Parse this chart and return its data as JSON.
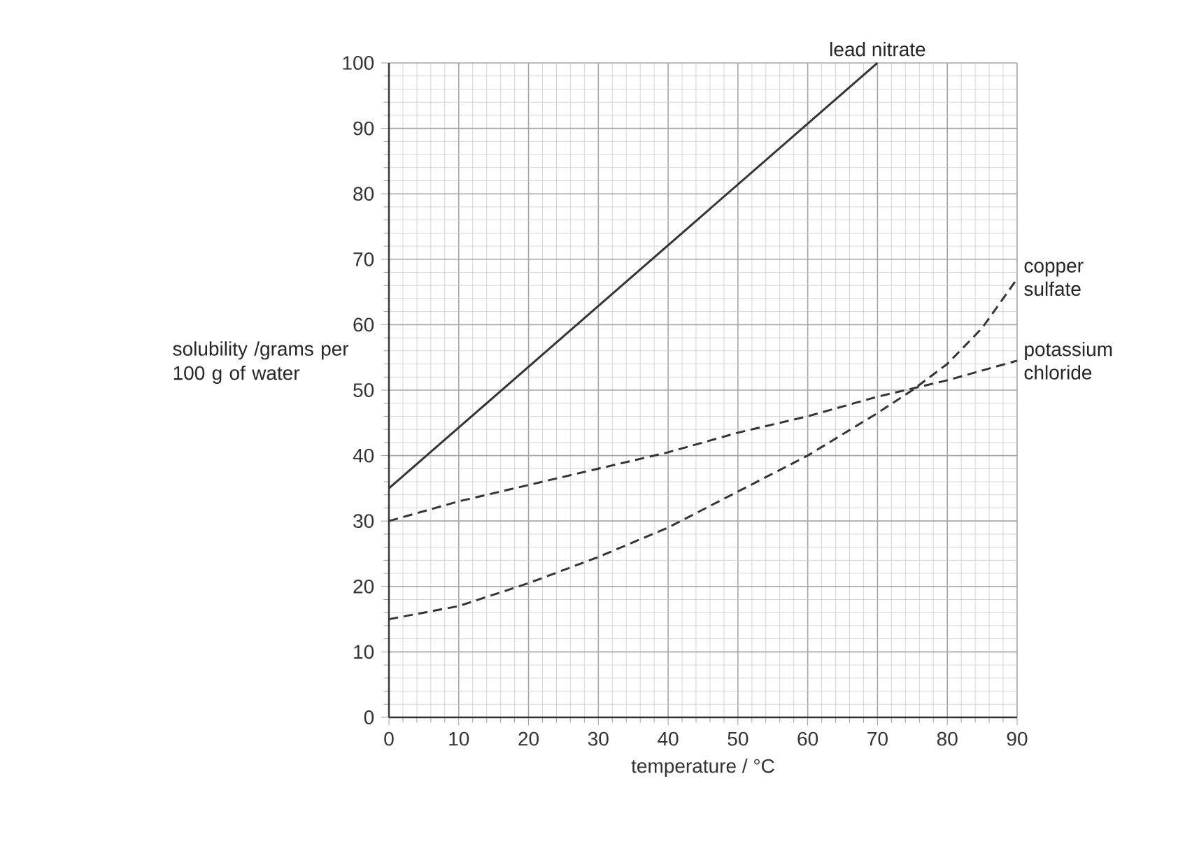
{
  "chart_data": {
    "type": "line",
    "xlabel": "temperature / °C",
    "ylabel": "solubility /grams per 100 g of water",
    "series": [
      {
        "name": "lead nitrate",
        "color": "#333333",
        "line_style": "solid",
        "x": [
          0,
          70
        ],
        "values": [
          35,
          100
        ]
      },
      {
        "name": "copper sulfate",
        "color": "#333333",
        "line_style": "dashed",
        "x": [
          0,
          10,
          20,
          30,
          40,
          50,
          60,
          70,
          75,
          80,
          85,
          90
        ],
        "values": [
          15,
          17,
          20.5,
          24.5,
          29,
          34.5,
          40,
          46.5,
          50,
          54,
          59.5,
          67
        ]
      },
      {
        "name": "potassium chloride",
        "color": "#333333",
        "line_style": "dashed",
        "x": [
          0,
          10,
          20,
          30,
          40,
          50,
          60,
          70,
          80,
          90
        ],
        "values": [
          30,
          33,
          35.5,
          38,
          40.5,
          43.5,
          46,
          49,
          51.5,
          54.5
        ]
      }
    ],
    "xlim": [
      0,
      90
    ],
    "ylim": [
      0,
      100
    ],
    "xticks": [
      0,
      10,
      20,
      30,
      40,
      50,
      60,
      70,
      80,
      90
    ],
    "yticks": [
      0,
      10,
      20,
      30,
      40,
      50,
      60,
      70,
      80,
      90,
      100
    ],
    "grid": true,
    "marker": "none"
  }
}
